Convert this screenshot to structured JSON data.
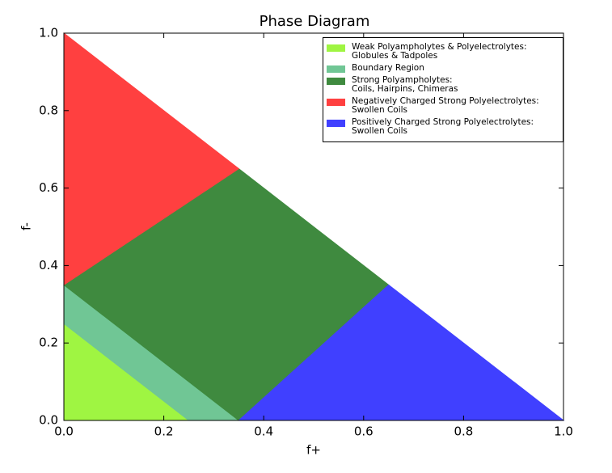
{
  "chart_data": {
    "type": "polygon",
    "title": "Phase Diagram",
    "x_label": "f+",
    "y_label": "f-",
    "xlim": [
      0,
      1
    ],
    "ylim": [
      0,
      1
    ],
    "xticks": [
      {
        "value": 0,
        "label": "0.0"
      },
      0.2,
      0.4,
      0.6,
      0.8,
      {
        "value": 1,
        "label": "1.0"
      }
    ],
    "yticks": [
      {
        "value": 0,
        "label": "0.0"
      },
      0.2,
      0.4,
      0.6,
      0.8,
      {
        "value": 1,
        "label": "1.0"
      }
    ],
    "legend": "upper right",
    "series": [
      {
        "name": "Weak Polyampholytes & Polyelectrolytes:\nGlobules & Tadpoles",
        "color": "#9ff542",
        "x": [
          0,
          0.25,
          0
        ],
        "values": [
          0,
          0,
          0.25
        ]
      },
      {
        "name": "Boundary Region",
        "color": "#70c695",
        "x": [
          0,
          0.25,
          0.35,
          0
        ],
        "values": [
          0.25,
          0,
          0,
          0.35
        ]
      },
      {
        "name": "Strong Polyampholytes:\nCoils, Hairpins, Chimeras",
        "color": "#3f8a3f",
        "x": [
          0,
          0.35,
          0.65,
          0.35
        ],
        "values": [
          0.35,
          0,
          0.35,
          0.65
        ]
      },
      {
        "name": "Negatively Charged Strong Polyelectrolytes:\nSwollen Coils",
        "color": "#ff4040",
        "x": [
          0,
          0.35,
          0
        ],
        "values": [
          0.35,
          0.65,
          1
        ]
      },
      {
        "name": "Positively Charged Strong Polyelectrolytes:\nSwollen Coils",
        "color": "#4040ff",
        "x": [
          0.35,
          1,
          0.65
        ],
        "values": [
          0,
          0,
          0.35
        ]
      }
    ]
  }
}
